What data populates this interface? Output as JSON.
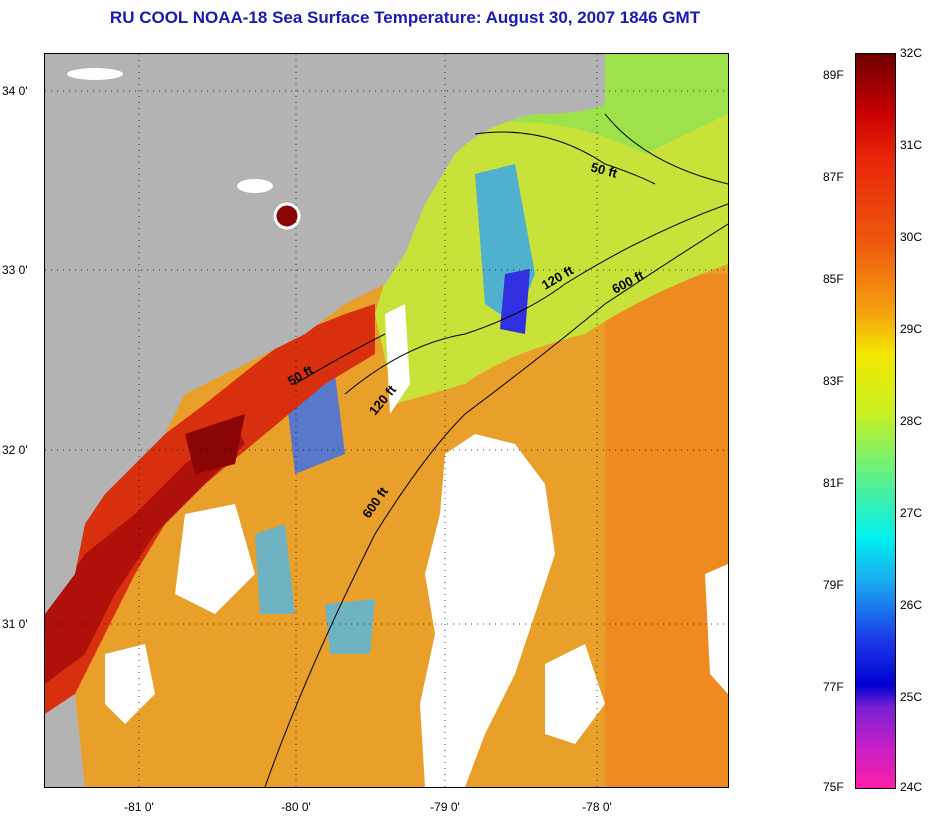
{
  "title": "RU COOL  NOAA-18  Sea Surface Temperature:  August 30, 2007 1846 GMT",
  "map": {
    "latitude_labels": [
      "34 0'",
      "33 0'",
      "32 0'",
      "31 0'"
    ],
    "longitude_labels": [
      "-81 0'",
      "-80 0'",
      "-79 0'",
      "-78 0'"
    ],
    "contour_labels": [
      "50 ft",
      "120 ft",
      "600 ft",
      "50 ft",
      "120 ft",
      "600 ft"
    ],
    "colors": {
      "land": "#b3b3b3",
      "cloud": "#ffffff",
      "warm_water": "#e9a02a",
      "hot_coastal": "#b0100a",
      "cool_water": "#3aa8e8"
    }
  },
  "colorbar": {
    "celsius_labels": [
      "32C",
      "31C",
      "30C",
      "29C",
      "28C",
      "27C",
      "26C",
      "25C",
      "24C"
    ],
    "fahrenheit_labels": [
      "89F",
      "87F",
      "85F",
      "83F",
      "81F",
      "79F",
      "77F",
      "75F"
    ]
  }
}
